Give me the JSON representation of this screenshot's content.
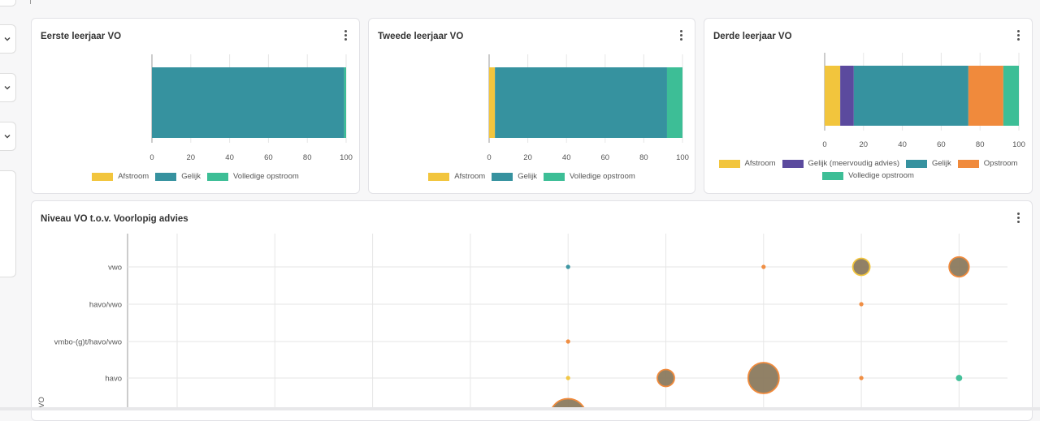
{
  "colors": {
    "afstroom": "#F2C53D",
    "afstroom_dark": "#F5B80F",
    "gelijk_meervoudig": "#5B4A9E",
    "gelijk": "#36929F",
    "opstroom": "#F08A3C",
    "volledige_opstroom": "#3DBE96",
    "bubble_fill": "#8B7A5E"
  },
  "cards": {
    "first": {
      "title": "Eerste leerjaar VO",
      "menu_icon": "kebab-icon"
    },
    "second": {
      "title": "Tweede leerjaar VO",
      "menu_icon": "kebab-icon"
    },
    "third": {
      "title": "Derde leerjaar VO",
      "menu_icon": "kebab-icon"
    },
    "bubble": {
      "title": "Niveau VO t.o.v. Voorlopig advies",
      "menu_icon": "kebab-icon"
    }
  },
  "chart_data": [
    {
      "type": "bar",
      "orientation": "horizontal",
      "stacked": true,
      "title": "Eerste leerjaar VO",
      "xlim": [
        0,
        100
      ],
      "xticks": [
        "0",
        "20",
        "40",
        "60",
        "80",
        "100"
      ],
      "legend": [
        "Afstroom",
        "Gelijk",
        "Volledige opstroom"
      ],
      "series": [
        {
          "name": "Afstroom",
          "values": [
            0
          ]
        },
        {
          "name": "Gelijk",
          "values": [
            99
          ]
        },
        {
          "name": "Volledige opstroom",
          "values": [
            1
          ]
        }
      ]
    },
    {
      "type": "bar",
      "orientation": "horizontal",
      "stacked": true,
      "title": "Tweede leerjaar VO",
      "xlim": [
        0,
        100
      ],
      "xticks": [
        "0",
        "20",
        "40",
        "60",
        "80",
        "100"
      ],
      "legend": [
        "Afstroom",
        "Gelijk",
        "Volledige opstroom"
      ],
      "series": [
        {
          "name": "Afstroom",
          "values": [
            3
          ]
        },
        {
          "name": "Gelijk",
          "values": [
            89
          ]
        },
        {
          "name": "Volledige opstroom",
          "values": [
            8
          ]
        }
      ]
    },
    {
      "type": "bar",
      "orientation": "horizontal",
      "stacked": true,
      "title": "Derde leerjaar VO",
      "xlim": [
        0,
        100
      ],
      "xticks": [
        "0",
        "20",
        "40",
        "60",
        "80",
        "100"
      ],
      "legend": [
        "Afstroom",
        "Gelijk (meervoudig advies)",
        "Gelijk",
        "Opstroom",
        "Volledige opstroom"
      ],
      "series": [
        {
          "name": "Afstroom",
          "values": [
            8
          ]
        },
        {
          "name": "Gelijk (meervoudig advies)",
          "values": [
            7
          ]
        },
        {
          "name": "Gelijk",
          "values": [
            59
          ]
        },
        {
          "name": "Opstroom",
          "values": [
            18
          ]
        },
        {
          "name": "Volledige opstroom",
          "values": [
            8
          ]
        }
      ]
    },
    {
      "type": "scatter",
      "variant": "bubble",
      "title": "Niveau VO t.o.v. Voorlopig advies",
      "ylabel": "VO",
      "y_categories": [
        "vwo",
        "havo/vwo",
        "vmbo-(g)t/havo/vwo",
        "havo",
        ""
      ],
      "x_category_count": 9,
      "points": [
        {
          "x": 5,
          "y": "vwo",
          "size": 1,
          "color": "#36929F"
        },
        {
          "x": 7,
          "y": "vwo",
          "size": 1,
          "color": "#F08A3C"
        },
        {
          "x": 8,
          "y": "vwo",
          "size": 6,
          "color": "#F2C53D"
        },
        {
          "x": 9,
          "y": "vwo",
          "size": 7,
          "color": "#F08A3C"
        },
        {
          "x": 8,
          "y": "havo/vwo",
          "size": 1,
          "color": "#F08A3C"
        },
        {
          "x": 5,
          "y": "vmbo-(g)t/havo/vwo",
          "size": 1,
          "color": "#F08A3C"
        },
        {
          "x": 5,
          "y": "havo",
          "size": 1,
          "color": "#F2C53D"
        },
        {
          "x": 6,
          "y": "havo",
          "size": 6,
          "color": "#F08A3C"
        },
        {
          "x": 7,
          "y": "havo",
          "size": 10,
          "color": "#F08A3C"
        },
        {
          "x": 8,
          "y": "havo",
          "size": 1,
          "color": "#F08A3C"
        },
        {
          "x": 9,
          "y": "havo",
          "size": 2,
          "color": "#3DBE96"
        },
        {
          "x": 5,
          "y": "",
          "size": 12,
          "color": "#F08A3C"
        }
      ]
    }
  ]
}
